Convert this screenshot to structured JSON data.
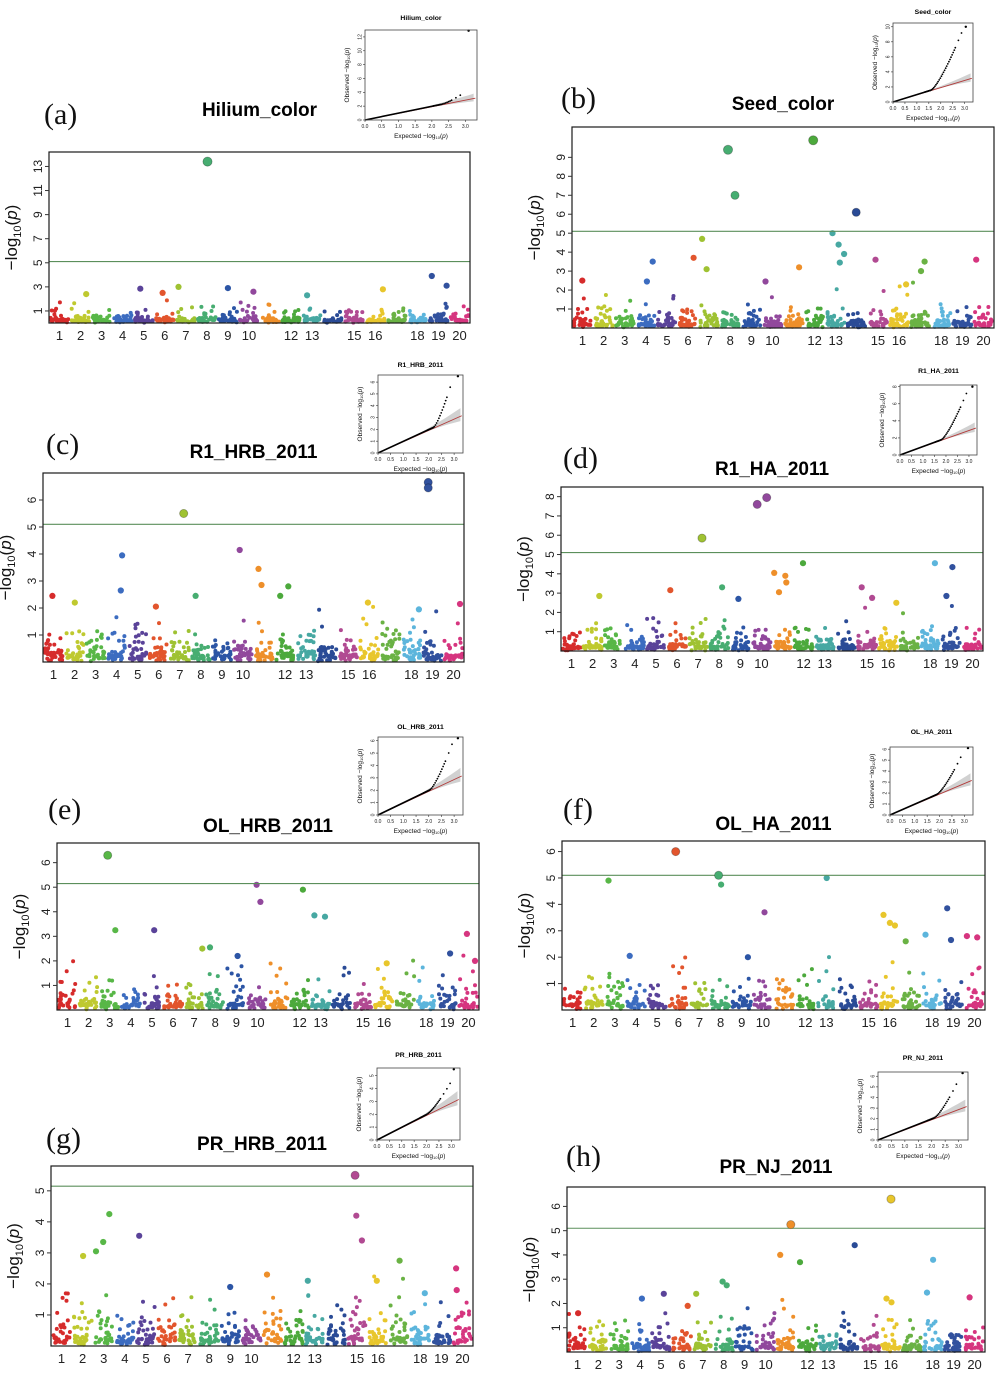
{
  "figure": {
    "type": "gwas-manhattan-grid",
    "ylabel": "-log10(p)",
    "threshold_line": 5.1,
    "threshold_color": "#5b8f5b",
    "n_chromosomes": 20,
    "x_tick_labels_shown": [
      "1",
      "2",
      "3",
      "4",
      "5",
      "6",
      "7",
      "8",
      "9",
      "10",
      "12",
      "13",
      "15",
      "16",
      "18",
      "19",
      "20"
    ],
    "chromosome_colors": [
      "#d62b2b",
      "#bfc92f",
      "#58b747",
      "#3c6cc0",
      "#5a4399",
      "#e2552d",
      "#9fc232",
      "#47ad71",
      "#2c55a5",
      "#91489c",
      "#ee8f2a",
      "#4ca93c",
      "#47a8a2",
      "#2a4b96",
      "#b14a92",
      "#e8c62c",
      "#6ab244",
      "#5cb5dc",
      "#31519e",
      "#d6357f"
    ],
    "qq": {
      "xlabel": "Expected -log10(p)",
      "ylabel": "Observed -log10(p)",
      "xticks": [
        0.0,
        0.5,
        1.0,
        1.5,
        2.0,
        2.5,
        3.0
      ],
      "line_color": "#b23b3b",
      "band_color": "#c9c9c9",
      "point_color": "#000000"
    }
  },
  "chart_data": [
    {
      "panel_label": "(a)",
      "title": "Hilium_color",
      "type": "scatter",
      "ylim": [
        0,
        14.2
      ],
      "yticks": [
        1,
        3,
        5,
        7,
        9,
        11,
        13
      ],
      "threshold": 5.1,
      "background_points_per_chr": 30,
      "background_max": 2.4,
      "significant_points": [
        {
          "chr": 8,
          "y": 13.4
        }
      ],
      "notable_points": [
        {
          "chr": 19,
          "y": 3.9
        },
        {
          "chr": 19,
          "y": 3.1
        },
        {
          "chr": 7,
          "y": 3.0
        },
        {
          "chr": 9,
          "y": 2.9
        },
        {
          "chr": 5,
          "y": 2.85
        },
        {
          "chr": 16,
          "y": 2.8
        },
        {
          "chr": 10,
          "y": 2.6
        },
        {
          "chr": 6,
          "y": 2.5
        },
        {
          "chr": 2,
          "y": 2.4
        },
        {
          "chr": 13,
          "y": 2.3
        }
      ],
      "qq_inset": {
        "title": "Hilium_color",
        "ymax": 13,
        "yticks": [
          0,
          2,
          4,
          6,
          8,
          10,
          12
        ],
        "bend": 2.3,
        "tail_top": 3.9,
        "top_point": [
          3.1,
          12.9
        ]
      }
    },
    {
      "panel_label": "(b)",
      "title": "Seed_color",
      "type": "scatter",
      "ylim": [
        0,
        10.6
      ],
      "yticks": [
        1,
        2,
        3,
        4,
        5,
        6,
        7,
        8,
        9
      ],
      "threshold": 5.1,
      "background_points_per_chr": 34,
      "background_max": 2.6,
      "significant_points": [
        {
          "chr": 12,
          "y": 9.9
        },
        {
          "chr": 8,
          "y": 9.4
        },
        {
          "chr": 8,
          "y": 7.0
        },
        {
          "chr": 14,
          "y": 6.1
        }
      ],
      "notable_points": [
        {
          "chr": 13,
          "y": 5.0
        },
        {
          "chr": 7,
          "y": 4.7
        },
        {
          "chr": 13,
          "y": 4.4
        },
        {
          "chr": 13,
          "y": 3.9
        },
        {
          "chr": 6,
          "y": 3.7
        },
        {
          "chr": 20,
          "y": 3.6
        },
        {
          "chr": 15,
          "y": 3.6
        },
        {
          "chr": 4,
          "y": 3.5
        },
        {
          "chr": 17,
          "y": 3.5
        },
        {
          "chr": 13,
          "y": 3.45
        },
        {
          "chr": 11,
          "y": 3.2
        },
        {
          "chr": 7,
          "y": 3.1
        },
        {
          "chr": 17,
          "y": 3.0
        },
        {
          "chr": 1,
          "y": 2.5
        },
        {
          "chr": 4,
          "y": 2.45
        },
        {
          "chr": 10,
          "y": 2.45
        },
        {
          "chr": 16,
          "y": 2.3
        }
      ],
      "qq_inset": {
        "title": "Seed_color",
        "ymax": 10.5,
        "yticks": [
          0,
          2,
          4,
          6,
          8,
          10
        ],
        "bend": 1.6,
        "tail_top": 9.8,
        "top_point": [
          3.05,
          10.0
        ]
      }
    },
    {
      "panel_label": "(c)",
      "title": "R1_HRB_2011",
      "type": "scatter",
      "ylim": [
        0,
        7.0
      ],
      "yticks": [
        1,
        2,
        3,
        4,
        5,
        6
      ],
      "threshold": 5.1,
      "background_points_per_chr": 36,
      "background_max": 2.5,
      "significant_points": [
        {
          "chr": 19,
          "y": 6.65,
          "dx": -0.2
        },
        {
          "chr": 19,
          "y": 6.45,
          "dx": -0.2
        },
        {
          "chr": 7,
          "y": 5.5
        }
      ],
      "notable_points": [
        {
          "chr": 10,
          "y": 4.15
        },
        {
          "chr": 4,
          "y": 3.95
        },
        {
          "chr": 11,
          "y": 3.45
        },
        {
          "chr": 11,
          "y": 2.85
        },
        {
          "chr": 12,
          "y": 2.8
        },
        {
          "chr": 4,
          "y": 2.65
        },
        {
          "chr": 1,
          "y": 2.45
        },
        {
          "chr": 8,
          "y": 2.45
        },
        {
          "chr": 12,
          "y": 2.45
        },
        {
          "chr": 2,
          "y": 2.2
        },
        {
          "chr": 16,
          "y": 2.2
        },
        {
          "chr": 20,
          "y": 2.15
        },
        {
          "chr": 6,
          "y": 2.05
        },
        {
          "chr": 18,
          "y": 1.95
        }
      ],
      "qq_inset": {
        "title": "R1_HRB_2011",
        "ymax": 6.6,
        "yticks": [
          0,
          1,
          2,
          3,
          4,
          5,
          6
        ],
        "bend": 2.2,
        "tail_top": 6.3,
        "top_point": [
          3.15,
          6.5
        ]
      }
    },
    {
      "panel_label": "(d)",
      "title": "R1_HA_2011",
      "type": "scatter",
      "ylim": [
        0,
        8.5
      ],
      "yticks": [
        1,
        2,
        3,
        4,
        5,
        6,
        7,
        8
      ],
      "threshold": 5.1,
      "background_points_per_chr": 34,
      "background_max": 2.6,
      "significant_points": [
        {
          "chr": 10,
          "y": 7.95,
          "dx": 0.25
        },
        {
          "chr": 10,
          "y": 7.6,
          "dx": -0.2
        },
        {
          "chr": 7,
          "y": 5.85
        }
      ],
      "notable_points": [
        {
          "chr": 12,
          "y": 4.55
        },
        {
          "chr": 18,
          "y": 4.55
        },
        {
          "chr": 19,
          "y": 4.35
        },
        {
          "chr": 11,
          "y": 4.05
        },
        {
          "chr": 11,
          "y": 3.9
        },
        {
          "chr": 11,
          "y": 3.55
        },
        {
          "chr": 15,
          "y": 3.3
        },
        {
          "chr": 8,
          "y": 3.3
        },
        {
          "chr": 6,
          "y": 3.15
        },
        {
          "chr": 11,
          "y": 3.05
        },
        {
          "chr": 2,
          "y": 2.85
        },
        {
          "chr": 19,
          "y": 2.85
        },
        {
          "chr": 15,
          "y": 2.75
        },
        {
          "chr": 9,
          "y": 2.7
        },
        {
          "chr": 16,
          "y": 2.5
        }
      ],
      "qq_inset": {
        "title": "R1_HA_2011",
        "ymax": 8.2,
        "yticks": [
          0,
          2,
          4,
          6,
          8
        ],
        "bend": 1.8,
        "tail_top": 7.6,
        "top_point": [
          3.15,
          8.0
        ]
      }
    },
    {
      "panel_label": "(e)",
      "title": "OL_HRB_2011",
      "type": "scatter",
      "ylim": [
        0,
        6.8
      ],
      "yticks": [
        1,
        2,
        3,
        4,
        5,
        6
      ],
      "threshold": 5.15,
      "background_points_per_chr": 30,
      "background_max": 2.3,
      "significant_points": [
        {
          "chr": 3,
          "y": 6.3
        }
      ],
      "notable_points": [
        {
          "chr": 10,
          "y": 5.1
        },
        {
          "chr": 12,
          "y": 4.9
        },
        {
          "chr": 10,
          "y": 4.4
        },
        {
          "chr": 13,
          "y": 3.85,
          "dx": -0.3
        },
        {
          "chr": 13,
          "y": 3.8,
          "dx": 0.2
        },
        {
          "chr": 3,
          "y": 3.25
        },
        {
          "chr": 5,
          "y": 3.25
        },
        {
          "chr": 20,
          "y": 3.1
        },
        {
          "chr": 8,
          "y": 2.55
        },
        {
          "chr": 7,
          "y": 2.5
        },
        {
          "chr": 19,
          "y": 2.3
        },
        {
          "chr": 9,
          "y": 2.2
        },
        {
          "chr": 20,
          "y": 2.0
        },
        {
          "chr": 16,
          "y": 1.9
        }
      ],
      "qq_inset": {
        "title": "OL_HRB_2011",
        "ymax": 6.3,
        "yticks": [
          0,
          1,
          2,
          3,
          4,
          5,
          6
        ],
        "bend": 2.05,
        "tail_top": 5.9,
        "top_point": [
          3.15,
          6.2
        ]
      }
    },
    {
      "panel_label": "(f)",
      "title": "OL_HA_2011",
      "type": "scatter",
      "ylim": [
        0,
        6.4
      ],
      "yticks": [
        1,
        2,
        3,
        4,
        5,
        6
      ],
      "threshold": 5.1,
      "background_points_per_chr": 28,
      "background_max": 2.1,
      "significant_points": [
        {
          "chr": 6,
          "y": 6.0
        },
        {
          "chr": 8,
          "y": 5.1
        }
      ],
      "notable_points": [
        {
          "chr": 13,
          "y": 5.0
        },
        {
          "chr": 3,
          "y": 4.9
        },
        {
          "chr": 8,
          "y": 4.75
        },
        {
          "chr": 19,
          "y": 3.85
        },
        {
          "chr": 10,
          "y": 3.7
        },
        {
          "chr": 16,
          "y": 3.6
        },
        {
          "chr": 16,
          "y": 3.3
        },
        {
          "chr": 16,
          "y": 3.2
        },
        {
          "chr": 18,
          "y": 2.85
        },
        {
          "chr": 20,
          "y": 2.8
        },
        {
          "chr": 20,
          "y": 2.75
        },
        {
          "chr": 19,
          "y": 2.65
        },
        {
          "chr": 17,
          "y": 2.6
        },
        {
          "chr": 4,
          "y": 2.05
        },
        {
          "chr": 9,
          "y": 2.0
        }
      ],
      "qq_inset": {
        "title": "OL_HA_2011",
        "ymax": 6.2,
        "yticks": [
          0,
          1,
          2,
          3,
          4,
          5,
          6
        ],
        "bend": 1.9,
        "tail_top": 5.7,
        "top_point": [
          3.15,
          6.1
        ]
      }
    },
    {
      "panel_label": "(g)",
      "title": "PR_HRB_2011",
      "type": "scatter",
      "ylim": [
        0,
        5.8
      ],
      "yticks": [
        1,
        2,
        3,
        4,
        5
      ],
      "threshold": 5.15,
      "background_points_per_chr": 34,
      "background_max": 2.3,
      "significant_points": [
        {
          "chr": 15,
          "y": 5.5
        }
      ],
      "notable_points": [
        {
          "chr": 3,
          "y": 4.25
        },
        {
          "chr": 15,
          "y": 4.2
        },
        {
          "chr": 5,
          "y": 3.55
        },
        {
          "chr": 15,
          "y": 3.4
        },
        {
          "chr": 3,
          "y": 3.35
        },
        {
          "chr": 3,
          "y": 3.05
        },
        {
          "chr": 2,
          "y": 2.9
        },
        {
          "chr": 17,
          "y": 2.75
        },
        {
          "chr": 20,
          "y": 2.5
        },
        {
          "chr": 11,
          "y": 2.3
        },
        {
          "chr": 13,
          "y": 2.1
        },
        {
          "chr": 16,
          "y": 2.1
        },
        {
          "chr": 9,
          "y": 1.9
        },
        {
          "chr": 20,
          "y": 1.8
        },
        {
          "chr": 18,
          "y": 1.7
        }
      ],
      "qq_inset": {
        "title": "PR_HRB_2011",
        "ymax": 5.6,
        "yticks": [
          0,
          1,
          2,
          3,
          4,
          5
        ],
        "bend": 2.0,
        "tail_top": 4.4,
        "top_point": [
          3.1,
          5.5
        ]
      }
    },
    {
      "panel_label": "(h)",
      "title": "PR_NJ_2011",
      "type": "scatter",
      "ylim": [
        0,
        6.8
      ],
      "yticks": [
        1,
        2,
        3,
        4,
        5,
        6
      ],
      "threshold": 5.1,
      "background_points_per_chr": 32,
      "background_max": 2.2,
      "significant_points": [
        {
          "chr": 16,
          "y": 6.3
        },
        {
          "chr": 11,
          "y": 5.25
        }
      ],
      "notable_points": [
        {
          "chr": 14,
          "y": 4.4
        },
        {
          "chr": 11,
          "y": 4.0
        },
        {
          "chr": 18,
          "y": 3.8
        },
        {
          "chr": 12,
          "y": 3.7
        },
        {
          "chr": 8,
          "y": 2.9
        },
        {
          "chr": 8,
          "y": 2.75
        },
        {
          "chr": 18,
          "y": 2.45
        },
        {
          "chr": 7,
          "y": 2.4
        },
        {
          "chr": 5,
          "y": 2.4
        },
        {
          "chr": 20,
          "y": 2.25
        },
        {
          "chr": 16,
          "y": 2.2
        },
        {
          "chr": 4,
          "y": 2.2
        },
        {
          "chr": 16,
          "y": 2.05
        },
        {
          "chr": 6,
          "y": 1.9
        },
        {
          "chr": 1,
          "y": 1.6
        }
      ],
      "qq_inset": {
        "title": "PR_NJ_2011",
        "ymax": 6.4,
        "yticks": [
          0,
          1,
          2,
          3,
          4,
          5,
          6
        ],
        "bend": 2.1,
        "tail_top": 5.4,
        "top_point": [
          3.15,
          6.3
        ]
      }
    }
  ]
}
